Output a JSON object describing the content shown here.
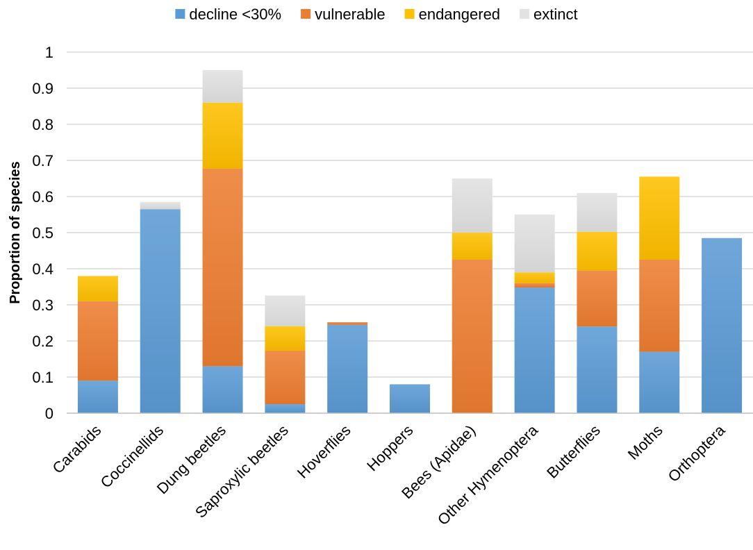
{
  "chart_data": {
    "type": "bar",
    "stacked": true,
    "title": "",
    "xlabel": "",
    "ylabel": "Proportion of species",
    "ylim": [
      0,
      1
    ],
    "yticks": [
      0,
      0.1,
      0.2,
      0.3,
      0.4,
      0.5,
      0.6,
      0.7,
      0.8,
      0.9,
      1
    ],
    "ytick_labels": [
      "0",
      "0.1",
      "0.2",
      "0.3",
      "0.4",
      "0.5",
      "0.6",
      "0.7",
      "0.8",
      "0.9",
      "1"
    ],
    "grid": true,
    "legend_position": "top",
    "categories": [
      "Carabids",
      "Coccinellids",
      "Dung beetles",
      "Saproxylic beetles",
      "Hoverflies",
      "Hoppers",
      "Bees (Apidae)",
      "Other Hymenoptera",
      "Butterflies",
      "Moths",
      "Orthoptera"
    ],
    "series": [
      {
        "name": "decline <30%",
        "color": "#5b9bd5",
        "values": [
          0.09,
          0.565,
          0.13,
          0.025,
          0.245,
          0.08,
          0.0,
          0.348,
          0.24,
          0.17,
          0.485
        ]
      },
      {
        "name": "vulnerable",
        "color": "#ed7d31",
        "values": [
          0.22,
          0.0,
          0.547,
          0.148,
          0.007,
          0.0,
          0.425,
          0.012,
          0.155,
          0.255,
          0.0
        ]
      },
      {
        "name": "endangered",
        "color": "#ffc000",
        "values": [
          0.07,
          0.0,
          0.183,
          0.068,
          0.0,
          0.0,
          0.075,
          0.03,
          0.107,
          0.23,
          0.0
        ]
      },
      {
        "name": "extinct",
        "color": "#e2e2e2",
        "values": [
          0.0,
          0.02,
          0.09,
          0.085,
          0.0,
          0.0,
          0.15,
          0.16,
          0.108,
          0.0,
          0.0
        ]
      }
    ]
  }
}
